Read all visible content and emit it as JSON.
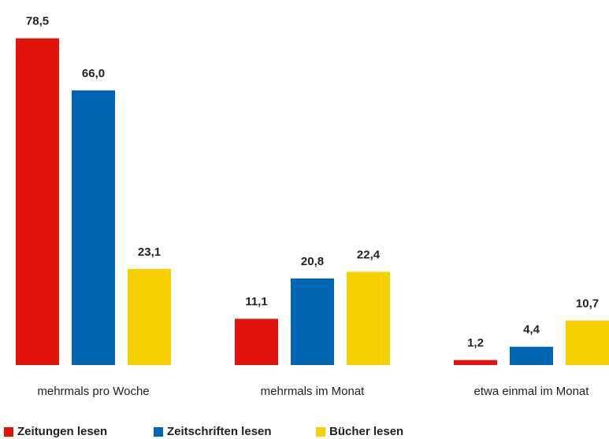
{
  "chart_data": {
    "type": "bar",
    "categories": [
      "mehrmals pro Woche",
      "mehrmals im Monat",
      "etwa einmal im Monat"
    ],
    "series": [
      {
        "name": "Zeitungen lesen",
        "color": "#e3120b",
        "values": [
          78.5,
          11.1,
          1.2
        ],
        "value_labels": [
          "78,5",
          "11,1",
          "1,2"
        ]
      },
      {
        "name": "Zeitschriften lesen",
        "color": "#0066b3",
        "values": [
          66.0,
          20.8,
          4.4
        ],
        "value_labels": [
          "66,0",
          "20,8",
          "4,4"
        ]
      },
      {
        "name": "Bücher lesen",
        "color": "#f7d000",
        "values": [
          23.1,
          22.4,
          10.7
        ],
        "value_labels": [
          "23,1",
          "22,4",
          "10,7"
        ]
      }
    ],
    "legend": "bottom-left"
  }
}
